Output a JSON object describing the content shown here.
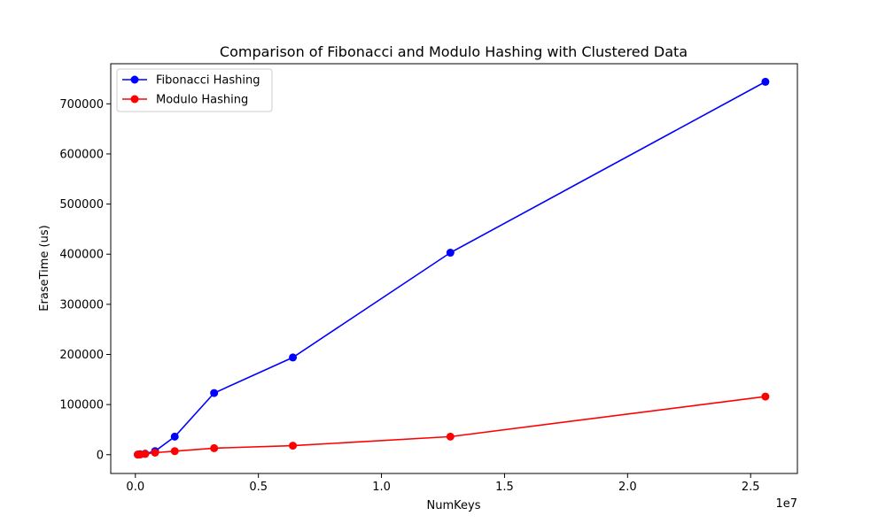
{
  "chart_data": {
    "type": "line",
    "title": "Comparison of Fibonacci and Modulo Hashing with Clustered Data",
    "xlabel": "NumKeys",
    "ylabel": "EraseTime (us)",
    "x_offset_label": "1e7",
    "xlim": [
      -1000000,
      26900000
    ],
    "ylim": [
      -37500,
      780000
    ],
    "x_ticks": [
      0,
      5000000,
      10000000,
      15000000,
      20000000,
      25000000
    ],
    "x_tick_labels": [
      "0.0",
      "0.5",
      "1.0",
      "1.5",
      "2.0",
      "2.5"
    ],
    "y_ticks": [
      0,
      100000,
      200000,
      300000,
      400000,
      500000,
      600000,
      700000
    ],
    "y_tick_labels": [
      "0",
      "100000",
      "200000",
      "300000",
      "400000",
      "500000",
      "600000",
      "700000"
    ],
    "legend_position": "top-left",
    "series": [
      {
        "name": "Fibonacci Hashing",
        "color": "#0000ff",
        "x": [
          100000,
          200000,
          400000,
          800000,
          1600000,
          3200000,
          6400000,
          12800000,
          25600000
        ],
        "y": [
          300,
          800,
          2000,
          7000,
          36000,
          123000,
          194000,
          403000,
          744000
        ]
      },
      {
        "name": "Modulo Hashing",
        "color": "#ff0000",
        "x": [
          100000,
          200000,
          400000,
          800000,
          1600000,
          3200000,
          6400000,
          12800000,
          25600000
        ],
        "y": [
          200,
          500,
          1500,
          4000,
          7000,
          13000,
          18000,
          36000,
          116000
        ]
      }
    ]
  }
}
